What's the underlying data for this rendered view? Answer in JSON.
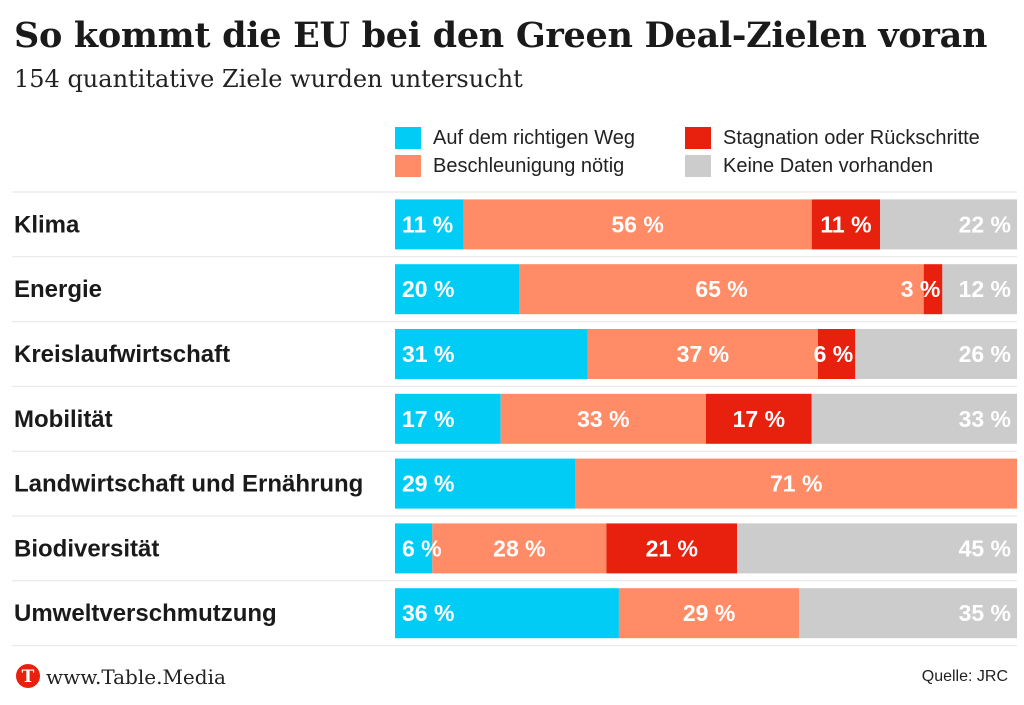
{
  "header": {
    "title": "So kommt die EU bei den Green Deal-Zielen voran",
    "subtitle": "154 quantitative Ziele wurden untersucht"
  },
  "footer": {
    "site": "www.Table.Media",
    "logo_letter": "T",
    "source": "Quelle: JRC"
  },
  "chart_data": {
    "type": "bar",
    "orientation": "horizontal",
    "stacked": true,
    "normalized_to": 100,
    "unit": "%",
    "legend_placement": "top-right",
    "categories": [
      "Klima",
      "Energie",
      "Kreislaufwirtschaft",
      "Mobilität",
      "Landwirtschaft und Ernährung",
      "Biodiversität",
      "Umweltverschmutzung"
    ],
    "series": [
      {
        "name": "Auf dem richtigen Weg",
        "color": "#00ccf5",
        "values": [
          11,
          20,
          31,
          17,
          29,
          6,
          36
        ]
      },
      {
        "name": "Beschleunigung nötig",
        "color": "#ff8c66",
        "values": [
          56,
          65,
          37,
          33,
          71,
          28,
          29
        ]
      },
      {
        "name": "Stagnation oder Rückschritte",
        "color": "#e8210f",
        "values": [
          11,
          3,
          6,
          17,
          0,
          21,
          0
        ]
      },
      {
        "name": "Keine Daten vorhanden",
        "color": "#cccccc",
        "values": [
          22,
          12,
          26,
          33,
          0,
          45,
          35
        ]
      }
    ],
    "data_labels": [
      [
        "11 %",
        "56 %",
        "11 %",
        "22 %"
      ],
      [
        "20 %",
        "65 %",
        "3 %",
        "12 %"
      ],
      [
        "31 %",
        "37 %",
        "6 %",
        "26 %"
      ],
      [
        "17 %",
        "33 %",
        "17 %",
        "33 %"
      ],
      [
        "29 %",
        "71 %",
        "",
        ""
      ],
      [
        "6 %",
        "28 %",
        "21 %",
        "45 %"
      ],
      [
        "36 %",
        "29 %",
        "",
        "35 %"
      ]
    ]
  }
}
